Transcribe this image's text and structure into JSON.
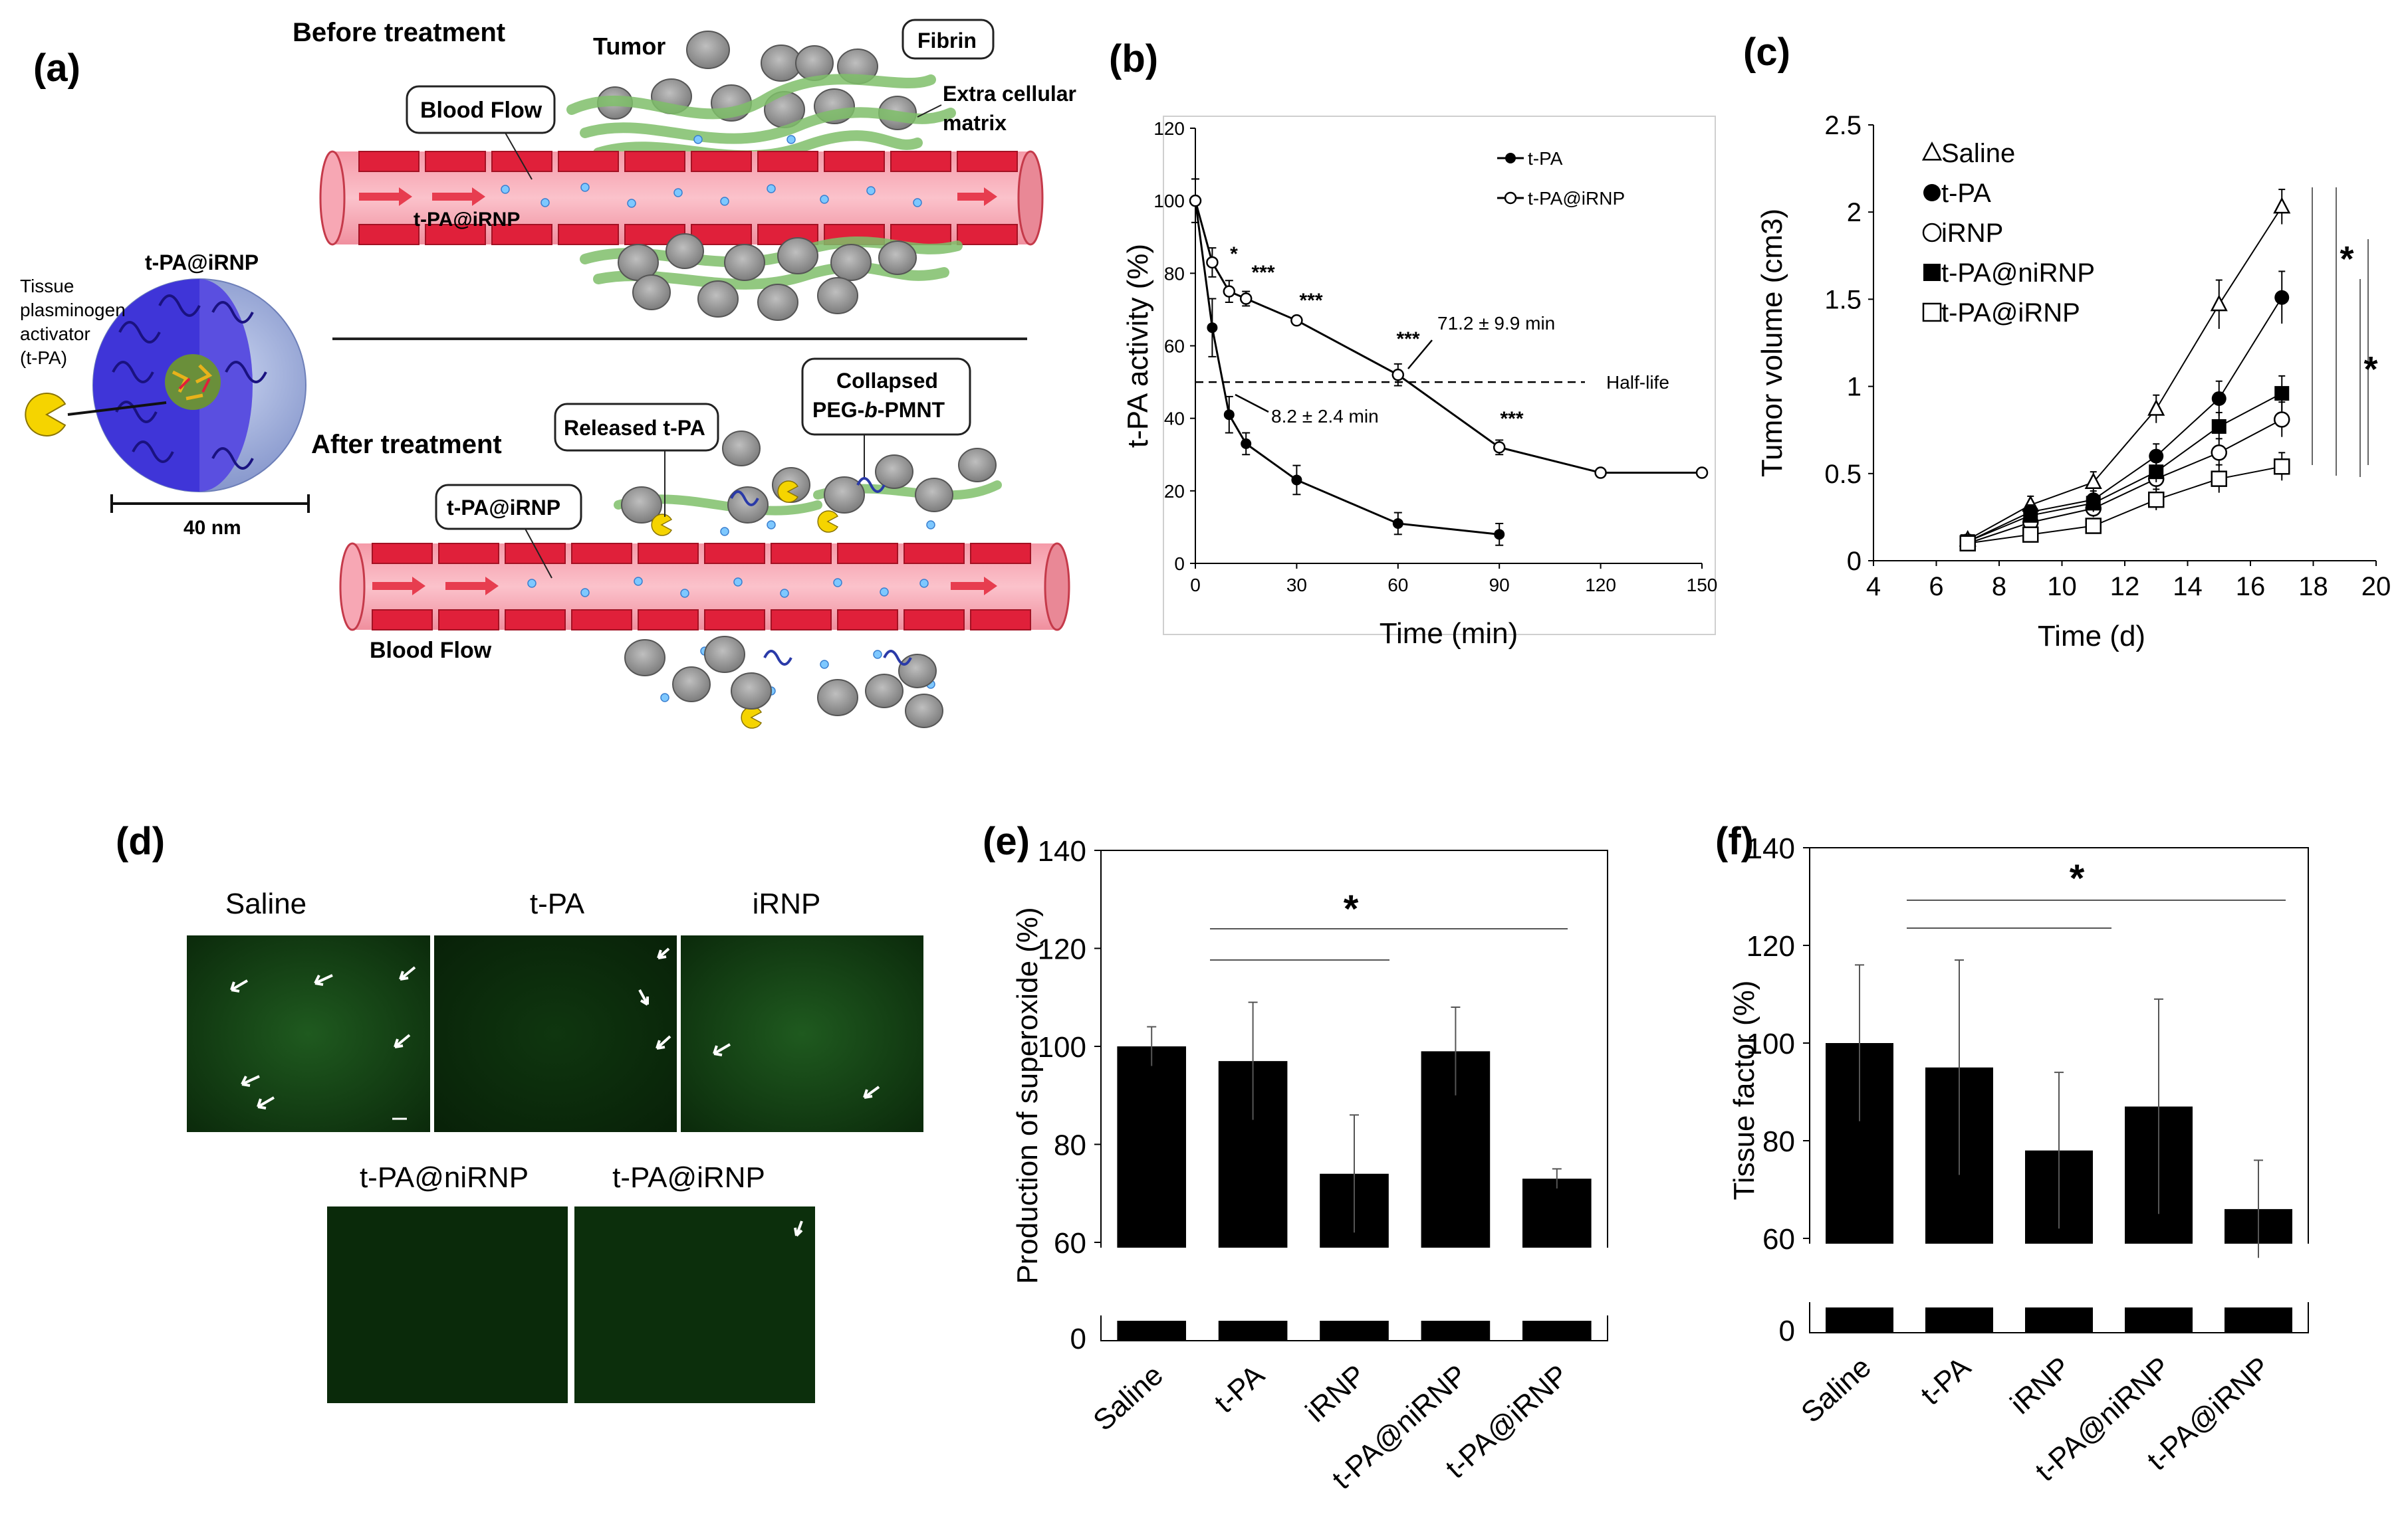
{
  "panel_labels": {
    "a": "(a)",
    "b": "(b)",
    "c": "(c)",
    "d": "(d)",
    "e": "(e)",
    "f": "(f)"
  },
  "schematic": {
    "before_title": "Before treatment",
    "after_title": "After treatment",
    "tumor": "Tumor",
    "fibrin": "Fibrin",
    "ecm_line1": "Extra cellular",
    "ecm_line2": "matrix",
    "blood_flow_box": "Blood Flow",
    "tpa_irnp_vessel": "t-PA@iRNP",
    "nanoparticle_title": "t-PA@iRNP",
    "tissue_line1": "Tissue",
    "tissue_line2": "plasminogen",
    "tissue_line3": "activator",
    "tissue_line4": "(t-PA)",
    "scale": "40 nm",
    "released": "Released t-PA",
    "collapsed_line1": "Collapsed",
    "collapsed_line2_a": "PEG-",
    "collapsed_line2_b": "b",
    "collapsed_line2_c": "-PMNT",
    "tpa_irnp_box": "t-PA@iRNP",
    "blood_flow_bottom": "Blood Flow"
  },
  "microscopy": {
    "labels": [
      "Saline",
      "t-PA",
      "iRNP",
      "t-PA@niRNP",
      "t-PA@iRNP"
    ]
  },
  "chart_data": [
    {
      "id": "b",
      "type": "line",
      "xlabel": "Time (min)",
      "ylabel": "t-PA activity (%)",
      "xlim": [
        0,
        150
      ],
      "ylim": [
        0,
        120
      ],
      "xticks": [
        "0",
        "30",
        "60",
        "90",
        "120",
        "150"
      ],
      "yticks": [
        "0",
        "20",
        "40",
        "60",
        "80",
        "100",
        "120"
      ],
      "legend_position": "top-right",
      "series": [
        {
          "name": "t-PA",
          "marker": "filled-circle",
          "x": [
            0,
            5,
            10,
            15,
            30,
            60,
            90
          ],
          "y": [
            100,
            65,
            41,
            33,
            23,
            11,
            8
          ],
          "err": [
            6,
            8,
            5,
            3,
            4,
            3,
            3
          ]
        },
        {
          "name": "t-PA@iRNP",
          "marker": "open-circle",
          "x": [
            0,
            5,
            10,
            15,
            30,
            60,
            90,
            120,
            150
          ],
          "y": [
            100,
            83,
            75,
            73,
            67,
            52,
            32,
            25,
            25
          ],
          "err": [
            6,
            4,
            3,
            2,
            1,
            3,
            2,
            1,
            1
          ]
        }
      ],
      "half_life_y": 50,
      "half_life_label": "Half-life",
      "annotation_tpa": "8.2 ± 2.4 min",
      "annotation_irnp": "71.2 ± 9.9 min",
      "stars": [
        "*",
        "***",
        "***",
        "***",
        "***"
      ]
    },
    {
      "id": "c",
      "type": "line",
      "xlabel": "Time (d)",
      "ylabel": "Tumor volume (cm3)",
      "xlim": [
        4,
        20
      ],
      "ylim": [
        0,
        2.5
      ],
      "xticks": [
        "4",
        "6",
        "8",
        "10",
        "12",
        "14",
        "16",
        "18",
        "20"
      ],
      "yticks": [
        "0",
        "0.5",
        "1",
        "1.5",
        "2",
        "2.5"
      ],
      "legend_position": "top-left",
      "x": [
        7,
        9,
        11,
        13,
        15,
        17
      ],
      "series": [
        {
          "name": "Saline",
          "marker": "open-triangle",
          "y": [
            0.12,
            0.32,
            0.45,
            0.87,
            1.47,
            2.03
          ],
          "err": [
            0.03,
            0.05,
            0.06,
            0.08,
            0.14,
            0.1
          ]
        },
        {
          "name": "t-PA",
          "marker": "filled-circle",
          "y": [
            0.11,
            0.28,
            0.35,
            0.6,
            0.93,
            1.51
          ],
          "err": [
            0.03,
            0.04,
            0.05,
            0.07,
            0.1,
            0.15
          ]
        },
        {
          "name": "iRNP",
          "marker": "open-circle",
          "y": [
            0.1,
            0.22,
            0.3,
            0.47,
            0.62,
            0.81
          ],
          "err": [
            0.03,
            0.04,
            0.05,
            0.06,
            0.08,
            0.1
          ]
        },
        {
          "name": "t-PA@niRNP",
          "marker": "filled-square",
          "y": [
            0.11,
            0.26,
            0.33,
            0.51,
            0.77,
            0.96
          ],
          "err": [
            0.03,
            0.04,
            0.05,
            0.06,
            0.08,
            0.1
          ]
        },
        {
          "name": "t-PA@iRNP",
          "marker": "open-square",
          "y": [
            0.1,
            0.15,
            0.2,
            0.35,
            0.47,
            0.54
          ],
          "err": [
            0.03,
            0.03,
            0.04,
            0.06,
            0.08,
            0.08
          ]
        }
      ],
      "stars": [
        "*",
        "*"
      ]
    },
    {
      "id": "e",
      "type": "bar",
      "ylabel": "Production of superoxide (%)",
      "categories": [
        "Saline",
        "t-PA",
        "iRNP",
        "t-PA@niRNP",
        "t-PA@iRNP"
      ],
      "values": [
        100,
        97,
        74,
        99,
        73
      ],
      "err": [
        4,
        12,
        12,
        9,
        2
      ],
      "yticks": [
        "0",
        "60",
        "80",
        "100",
        "120",
        "140"
      ],
      "ylim_broken": [
        0,
        60,
        140
      ],
      "star": "*"
    },
    {
      "id": "f",
      "type": "bar",
      "ylabel": "Tissue factor (%)",
      "categories": [
        "Saline",
        "t-PA",
        "iRNP",
        "t-PA@niRNP",
        "t-PA@iRNP"
      ],
      "values": [
        100,
        95,
        78,
        87,
        66
      ],
      "err": [
        16,
        22,
        16,
        22,
        10
      ],
      "yticks": [
        "0",
        "60",
        "80",
        "100",
        "120",
        "140"
      ],
      "ylim_broken": [
        0,
        60,
        140
      ],
      "star": "*"
    }
  ]
}
